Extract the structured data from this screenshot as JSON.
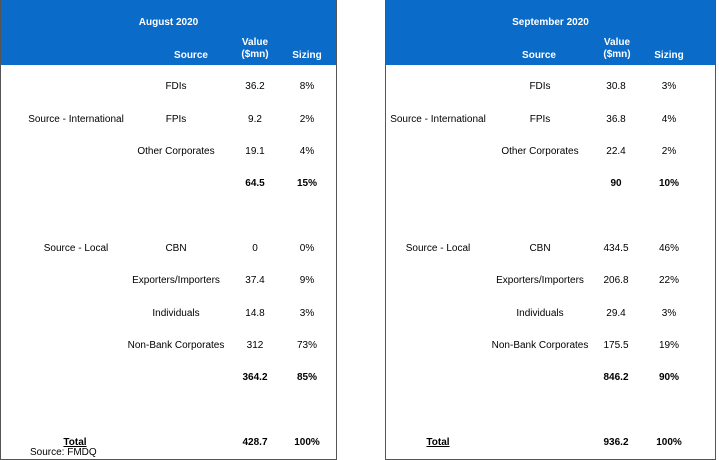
{
  "panels": [
    {
      "title": "August 2020",
      "headers": {
        "source": "Source",
        "value": "Value ($mn)",
        "sizing": "Sizing"
      },
      "groups": [
        {
          "label": "Source - International",
          "rows": [
            {
              "name": "FDIs",
              "value": "36.2",
              "sizing": "8%"
            },
            {
              "name": "FPIs",
              "value": "9.2",
              "sizing": "2%"
            },
            {
              "name": "Other Corporates",
              "value": "19.1",
              "sizing": "4%"
            }
          ],
          "subtotal": {
            "value": "64.5",
            "sizing": "15%"
          }
        },
        {
          "label": "Source - Local",
          "rows": [
            {
              "name": "CBN",
              "value": "0",
              "sizing": "0%"
            },
            {
              "name": "Exporters/Importers",
              "value": "37.4",
              "sizing": "9%"
            },
            {
              "name": "Individuals",
              "value": "14.8",
              "sizing": "3%"
            },
            {
              "name": "Non-Bank Corporates",
              "value": "312",
              "sizing": "73%"
            }
          ],
          "subtotal": {
            "value": "364.2",
            "sizing": "85%"
          }
        }
      ],
      "total": {
        "label": "Total",
        "value": "428.7",
        "sizing": "100%"
      }
    },
    {
      "title": "September 2020",
      "headers": {
        "source": "Source",
        "value": "Value ($mn)",
        "sizing": "Sizing"
      },
      "groups": [
        {
          "label": "Source - International",
          "rows": [
            {
              "name": "FDIs",
              "value": "30.8",
              "sizing": "3%"
            },
            {
              "name": "FPIs",
              "value": "36.8",
              "sizing": "4%"
            },
            {
              "name": "Other Corporates",
              "value": "22.4",
              "sizing": "2%"
            }
          ],
          "subtotal": {
            "value": "90",
            "sizing": "10%"
          }
        },
        {
          "label": "Source - Local",
          "rows": [
            {
              "name": "CBN",
              "value": "434.5",
              "sizing": "46%"
            },
            {
              "name": "Exporters/Importers",
              "value": "206.8",
              "sizing": "22%"
            },
            {
              "name": "Individuals",
              "value": "29.4",
              "sizing": "3%"
            },
            {
              "name": "Non-Bank Corporates",
              "value": "175.5",
              "sizing": "19%"
            }
          ],
          "subtotal": {
            "value": "846.2",
            "sizing": "90%"
          }
        }
      ],
      "total": {
        "label": "Total",
        "value": "936.2",
        "sizing": "100%"
      }
    }
  ],
  "footnote": "Source: FMDQ",
  "colors": {
    "header_bg": "#0a6bc8",
    "header_text": "#ffffff"
  }
}
